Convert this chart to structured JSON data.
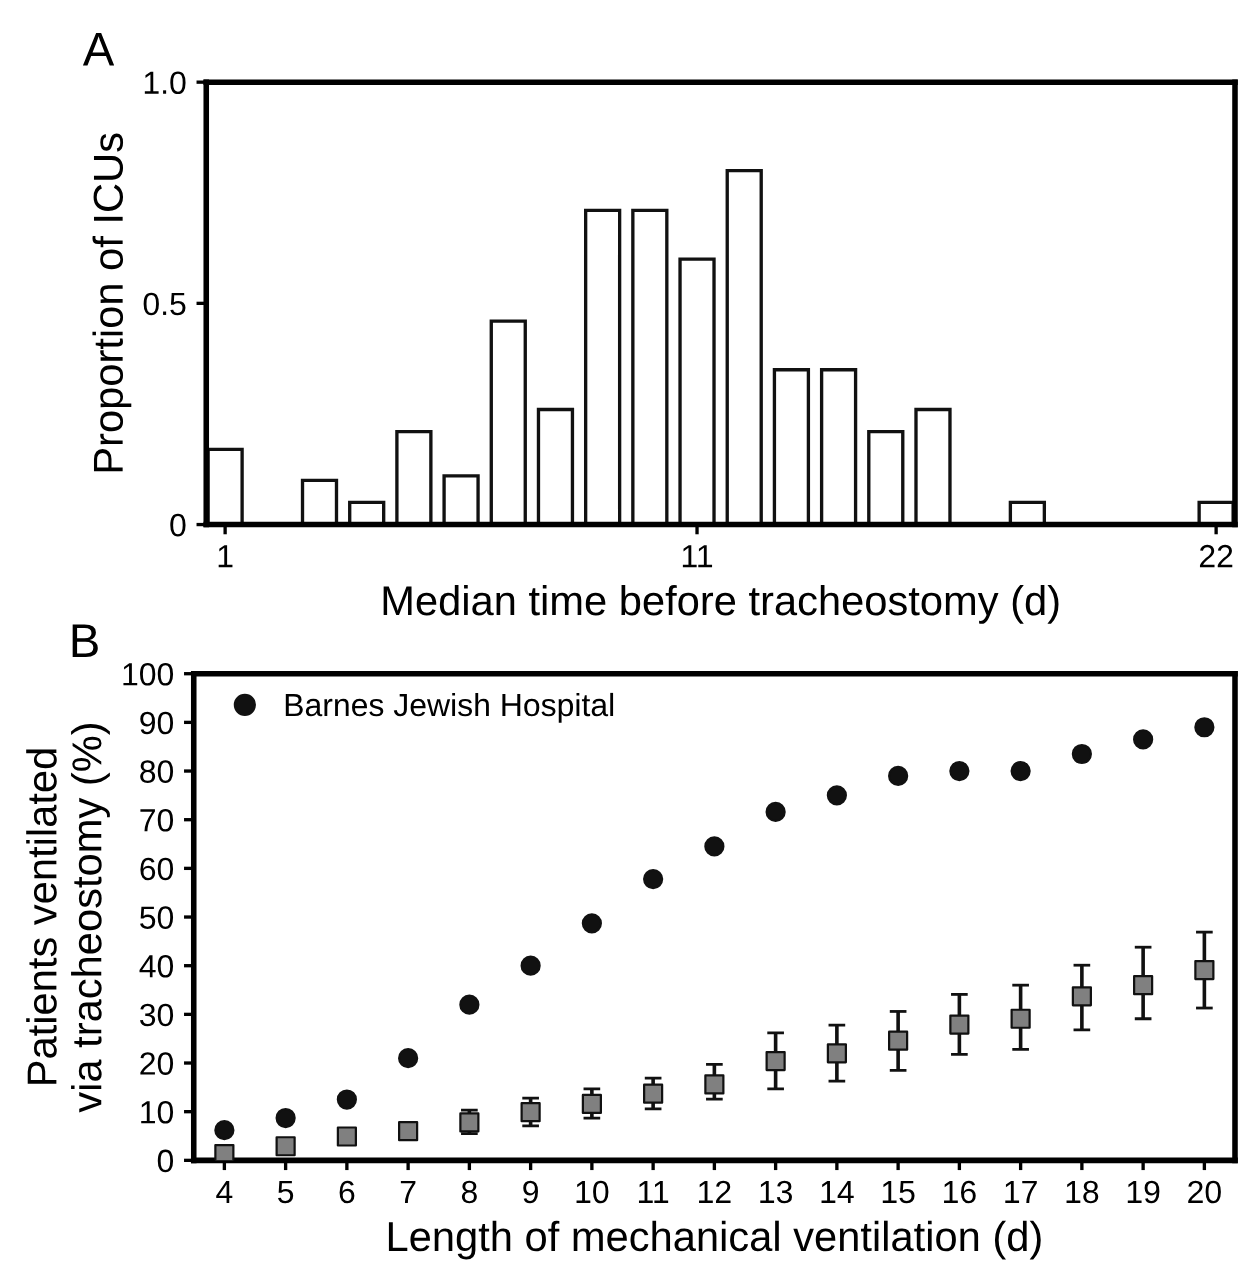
{
  "chart_data": [
    {
      "type": "bar",
      "title": "A",
      "xlabel": "Median time before tracheostomy (d)",
      "ylabel": "Proportion of ICUs",
      "x": [
        1,
        2,
        3,
        4,
        5,
        6,
        7,
        8,
        9,
        10,
        11,
        12,
        13,
        14,
        15,
        16,
        17,
        18,
        19,
        20,
        21,
        22
      ],
      "values": [
        0.17,
        0,
        0.1,
        0.05,
        0.21,
        0.11,
        0.46,
        0.26,
        0.71,
        0.71,
        0.6,
        0.8,
        0.35,
        0.35,
        0.21,
        0.26,
        0,
        0.05,
        0,
        0,
        0,
        0.05
      ],
      "color": "#ffffff",
      "xlim": [
        0.6,
        22.4
      ],
      "xticks": [
        1,
        11,
        22
      ],
      "ylim": [
        0,
        1
      ],
      "yticks": [
        0,
        0.5,
        {
          "value": 1,
          "label": "1.0"
        }
      ],
      "grid": false,
      "legend": false
    },
    {
      "type": "scatter",
      "title": "B",
      "xlabel": "Length of mechanical ventilation (d)",
      "ylabel": "Patients ventilated\nvia tracheostomy (%)",
      "x": [
        4,
        5,
        6,
        7,
        8,
        9,
        10,
        11,
        12,
        13,
        14,
        15,
        16,
        17,
        18,
        19,
        20
      ],
      "series": [
        {
          "name": "Barnes Jewish Hospital",
          "color": "#111111",
          "marker": "circle",
          "values": [
            6.2,
            8.7,
            12.5,
            21,
            32,
            40,
            48.7,
            57.8,
            64.5,
            71.6,
            75,
            79,
            80,
            80,
            83.5,
            86.5,
            89
          ]
        },
        {
          "color": "#808080",
          "marker": "square",
          "values": [
            1.3,
            2.9,
            4.9,
            6,
            7.8,
            9.9,
            11.6,
            13.7,
            15.6,
            20.4,
            22,
            24.6,
            27.9,
            29.1,
            33.7,
            36,
            39.1
          ],
          "errors": [
            null,
            null,
            [
              3.8,
              5.6
            ],
            [
              4.6,
              7
            ],
            [
              5.5,
              10.3
            ],
            [
              7.1,
              12.8
            ],
            [
              8.7,
              14.7
            ],
            [
              10.6,
              16.9
            ],
            [
              12.6,
              19.7
            ],
            [
              14.7,
              26.2
            ],
            [
              16.3,
              27.8
            ],
            [
              18.5,
              30.6
            ],
            [
              21.8,
              34.1
            ],
            [
              22.8,
              36
            ],
            [
              26.8,
              40.1
            ],
            [
              29.1,
              43.8
            ],
            [
              31.3,
              46.9
            ]
          ]
        }
      ],
      "xlim": [
        3.5,
        20.5
      ],
      "xticks": [
        4,
        5,
        6,
        7,
        8,
        9,
        10,
        11,
        12,
        13,
        14,
        15,
        16,
        17,
        18,
        19,
        20
      ],
      "ylim": [
        0,
        100
      ],
      "yticks": [
        0,
        10,
        20,
        30,
        40,
        50,
        60,
        70,
        80,
        90,
        100
      ],
      "grid": false,
      "legend": "top left"
    }
  ]
}
